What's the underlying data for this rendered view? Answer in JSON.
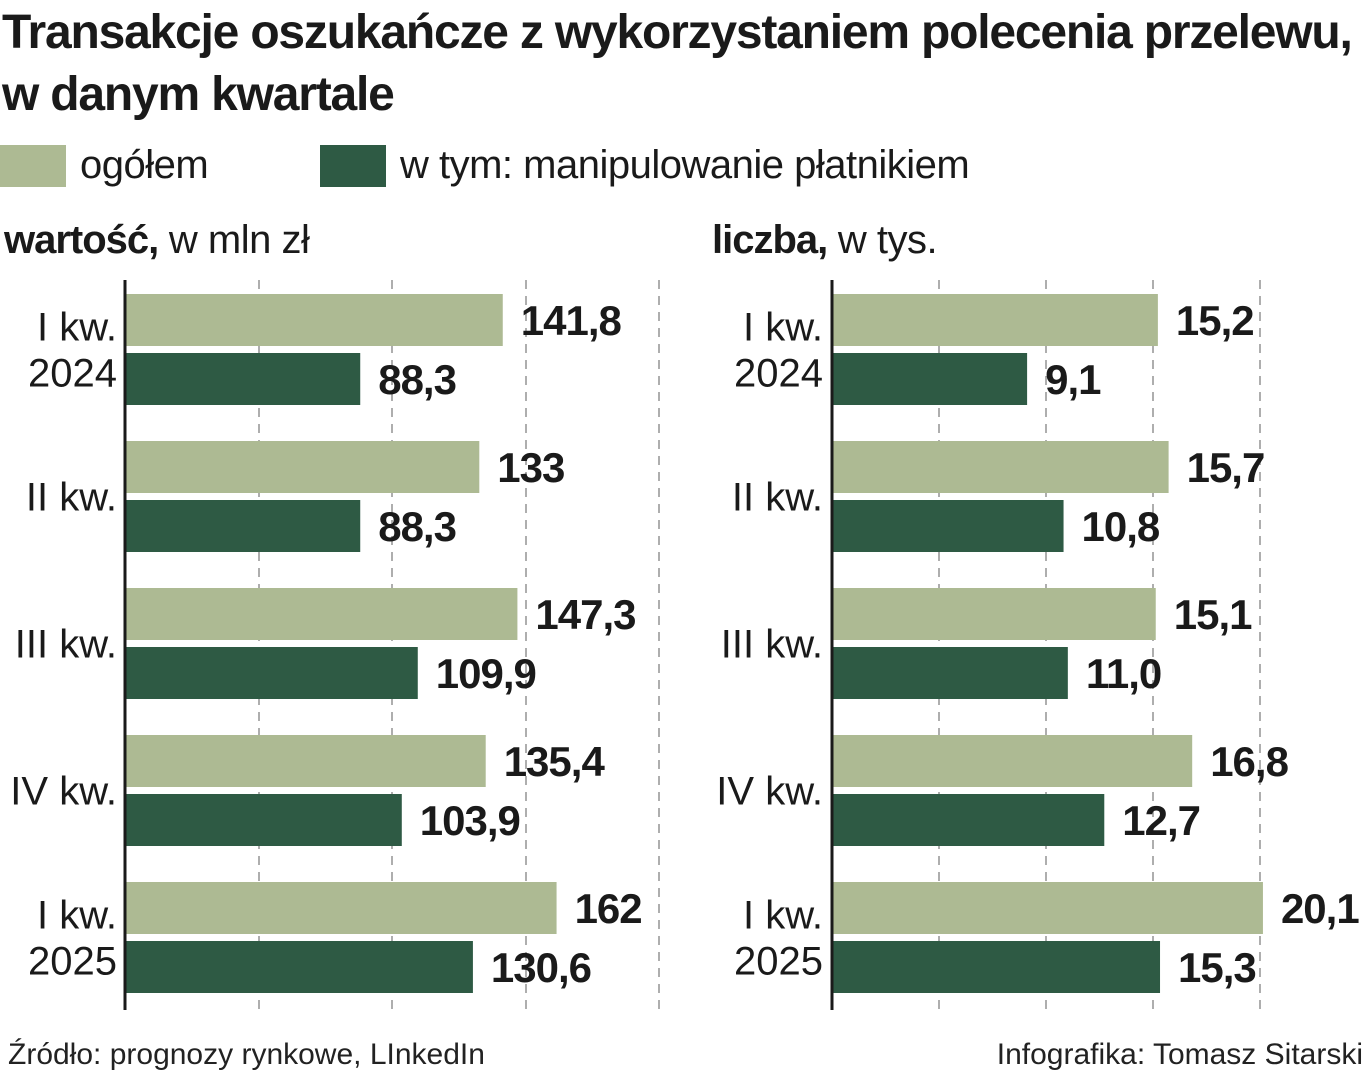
{
  "title": "Transakcje oszukańcze z wykorzystaniem polecenia przelewu, w danym kwartale",
  "legend": {
    "total_label": "ogółem",
    "subset_label": "w tym: manipulowanie płatnikiem"
  },
  "colors": {
    "total": "#adba93",
    "subset": "#2e5a44",
    "axis": "#1a1a1a",
    "grid": "#9a9a9a"
  },
  "panels": {
    "value": {
      "heading_bold": "wartość,",
      "heading_rest": " w mln zł"
    },
    "count": {
      "heading_bold": "liczba,",
      "heading_rest": " w tys."
    }
  },
  "chart_data": [
    {
      "type": "bar",
      "orientation": "horizontal",
      "categories": [
        "I kw.\n2024",
        "II kw.",
        "III kw.",
        "IV kw.",
        "I kw.\n2025"
      ],
      "series": [
        {
          "name": "ogółem",
          "values": [
            141.8,
            133,
            147.3,
            135.4,
            162
          ],
          "labels": [
            "141,8",
            "133",
            "147,3",
            "135,4",
            "162"
          ]
        },
        {
          "name": "w tym: manipulowanie płatnikiem",
          "values": [
            88.3,
            88.3,
            109.9,
            103.9,
            130.6
          ],
          "labels": [
            "88,3",
            "88,3",
            "109,9",
            "103,9",
            "130,6"
          ]
        }
      ],
      "xlim": [
        0,
        200
      ],
      "grid": true
    },
    {
      "type": "bar",
      "orientation": "horizontal",
      "categories": [
        "I kw.\n2024",
        "II kw.",
        "III kw.",
        "IV kw.",
        "I kw.\n2025"
      ],
      "series": [
        {
          "name": "ogółem",
          "values": [
            15.2,
            15.7,
            15.1,
            16.8,
            20.1
          ],
          "labels": [
            "15,2",
            "15,7",
            "15,1",
            "16,8",
            "20,1"
          ]
        },
        {
          "name": "w tym: manipulowanie płatnikiem",
          "values": [
            9.1,
            10.8,
            11.0,
            12.7,
            15.3
          ],
          "labels": [
            "9,1",
            "10,8",
            "11,0",
            "12,7",
            "15,3"
          ]
        }
      ],
      "xlim": [
        0,
        20
      ],
      "grid": true
    }
  ],
  "footer": {
    "source": "Źródło: prognozy rynkowe, LInkedIn",
    "credit": "Infografika: Tomasz Sitarski"
  }
}
